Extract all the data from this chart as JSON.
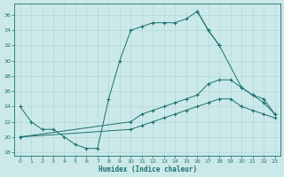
{
  "background_color": "#cce9e9",
  "grid_color": "#aad4d4",
  "line_color": "#1a7070",
  "xlabel": "Humidex (Indice chaleur)",
  "xlim": [
    -0.5,
    23.5
  ],
  "ylim": [
    17.5,
    37.5
  ],
  "xticks": [
    0,
    1,
    2,
    3,
    4,
    5,
    6,
    7,
    8,
    9,
    10,
    11,
    12,
    13,
    14,
    15,
    16,
    17,
    18,
    19,
    20,
    21,
    22,
    23
  ],
  "yticks": [
    18,
    20,
    22,
    24,
    26,
    28,
    30,
    32,
    34,
    36
  ],
  "series": [
    {
      "x": [
        0,
        1,
        2,
        3,
        4,
        5,
        6,
        7,
        8,
        9,
        10,
        11,
        12,
        13,
        14,
        15,
        16,
        17,
        18
      ],
      "y": [
        24,
        22,
        21,
        21,
        20,
        19,
        18.5,
        18.5,
        25,
        30,
        34,
        34.5,
        35,
        35,
        35,
        35.5,
        36.5,
        34,
        32
      ]
    },
    {
      "x": [
        16,
        17,
        18,
        20,
        21,
        22,
        23
      ],
      "y": [
        36.5,
        34,
        32,
        26.5,
        25.5,
        24.5,
        23
      ]
    },
    {
      "x": [
        0,
        10,
        11,
        12,
        13,
        14,
        15,
        16,
        17,
        18,
        19,
        20,
        21,
        22,
        23
      ],
      "y": [
        20,
        22,
        23,
        23.5,
        24,
        24.5,
        25,
        25.5,
        27,
        27.5,
        27.5,
        26.5,
        25.5,
        25,
        23
      ]
    },
    {
      "x": [
        0,
        10,
        11,
        12,
        13,
        14,
        15,
        16,
        17,
        18,
        19,
        20,
        21,
        22,
        23
      ],
      "y": [
        20,
        21,
        21.5,
        22,
        22.5,
        23,
        23.5,
        24,
        24.5,
        25,
        25,
        24,
        23.5,
        23,
        22.5
      ]
    }
  ]
}
